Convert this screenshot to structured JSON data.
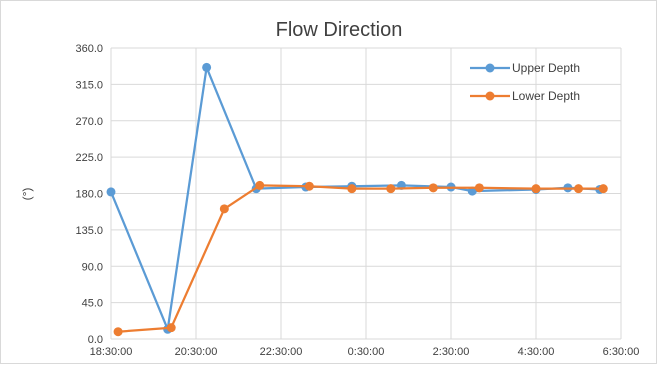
{
  "chart_data": {
    "type": "line",
    "title": "Flow Direction",
    "ylabel": "(°)",
    "xlabel": "",
    "x_tick_labels": [
      "18:30:00",
      "20:30:00",
      "22:30:00",
      "0:30:00",
      "2:30:00",
      "4:30:00",
      "6:30:00"
    ],
    "y_tick_labels": [
      "0.0",
      "45.0",
      "90.0",
      "135.0",
      "180.0",
      "225.0",
      "270.0",
      "315.0",
      "360.0"
    ],
    "ylim": [
      0,
      360
    ],
    "yticks": [
      0,
      45,
      90,
      135,
      180,
      225,
      270,
      315,
      360
    ],
    "xlim": [
      "18:30:00",
      "6:30:00"
    ],
    "grid": true,
    "legend_position": "top-right",
    "series": [
      {
        "name": "Upper Depth",
        "color": "#5b9bd5",
        "points": [
          {
            "x": "18:30:00",
            "y": 182
          },
          {
            "x": "19:50:00",
            "y": 12
          },
          {
            "x": "20:45:00",
            "y": 336
          },
          {
            "x": "21:55:00",
            "y": 186
          },
          {
            "x": "23:05:00",
            "y": 188
          },
          {
            "x": "0:10:00",
            "y": 189
          },
          {
            "x": "1:20:00",
            "y": 190
          },
          {
            "x": "2:30:00",
            "y": 188
          },
          {
            "x": "3:00:00",
            "y": 183
          },
          {
            "x": "4:30:00",
            "y": 185
          },
          {
            "x": "5:15:00",
            "y": 187
          },
          {
            "x": "6:00:00",
            "y": 185
          }
        ]
      },
      {
        "name": "Lower Depth",
        "color": "#ed7d31",
        "points": [
          {
            "x": "18:40:00",
            "y": 9
          },
          {
            "x": "19:55:00",
            "y": 14
          },
          {
            "x": "21:10:00",
            "y": 161
          },
          {
            "x": "22:00:00",
            "y": 190
          },
          {
            "x": "23:10:00",
            "y": 189
          },
          {
            "x": "0:10:00",
            "y": 186
          },
          {
            "x": "1:05:00",
            "y": 186
          },
          {
            "x": "2:05:00",
            "y": 187
          },
          {
            "x": "3:10:00",
            "y": 187
          },
          {
            "x": "4:30:00",
            "y": 186
          },
          {
            "x": "5:30:00",
            "y": 186
          },
          {
            "x": "6:05:00",
            "y": 186
          }
        ]
      }
    ]
  }
}
